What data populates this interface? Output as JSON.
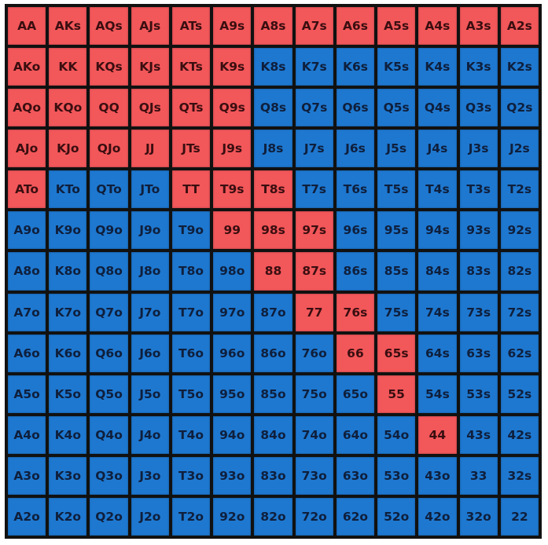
{
  "colors": {
    "raise": "#f2575a",
    "fold": "#1e78d0",
    "border": "#111111"
  },
  "grid": {
    "rows": [
      {
        "cells": [
          {
            "label": "AA",
            "action": "raise"
          },
          {
            "label": "AKs",
            "action": "raise"
          },
          {
            "label": "AQs",
            "action": "raise"
          },
          {
            "label": "AJs",
            "action": "raise"
          },
          {
            "label": "ATs",
            "action": "raise"
          },
          {
            "label": "A9s",
            "action": "raise"
          },
          {
            "label": "A8s",
            "action": "raise"
          },
          {
            "label": "A7s",
            "action": "raise"
          },
          {
            "label": "A6s",
            "action": "raise"
          },
          {
            "label": "A5s",
            "action": "raise"
          },
          {
            "label": "A4s",
            "action": "raise"
          },
          {
            "label": "A3s",
            "action": "raise"
          },
          {
            "label": "A2s",
            "action": "raise"
          }
        ]
      },
      {
        "cells": [
          {
            "label": "AKo",
            "action": "raise"
          },
          {
            "label": "KK",
            "action": "raise"
          },
          {
            "label": "KQs",
            "action": "raise"
          },
          {
            "label": "KJs",
            "action": "raise"
          },
          {
            "label": "KTs",
            "action": "raise"
          },
          {
            "label": "K9s",
            "action": "raise"
          },
          {
            "label": "K8s",
            "action": "fold"
          },
          {
            "label": "K7s",
            "action": "fold"
          },
          {
            "label": "K6s",
            "action": "fold"
          },
          {
            "label": "K5s",
            "action": "fold"
          },
          {
            "label": "K4s",
            "action": "fold"
          },
          {
            "label": "K3s",
            "action": "fold"
          },
          {
            "label": "K2s",
            "action": "fold"
          }
        ]
      },
      {
        "cells": [
          {
            "label": "AQo",
            "action": "raise"
          },
          {
            "label": "KQo",
            "action": "raise"
          },
          {
            "label": "QQ",
            "action": "raise"
          },
          {
            "label": "QJs",
            "action": "raise"
          },
          {
            "label": "QTs",
            "action": "raise"
          },
          {
            "label": "Q9s",
            "action": "raise"
          },
          {
            "label": "Q8s",
            "action": "fold"
          },
          {
            "label": "Q7s",
            "action": "fold"
          },
          {
            "label": "Q6s",
            "action": "fold"
          },
          {
            "label": "Q5s",
            "action": "fold"
          },
          {
            "label": "Q4s",
            "action": "fold"
          },
          {
            "label": "Q3s",
            "action": "fold"
          },
          {
            "label": "Q2s",
            "action": "fold"
          }
        ]
      },
      {
        "cells": [
          {
            "label": "AJo",
            "action": "raise"
          },
          {
            "label": "KJo",
            "action": "raise"
          },
          {
            "label": "QJo",
            "action": "raise"
          },
          {
            "label": "JJ",
            "action": "raise"
          },
          {
            "label": "JTs",
            "action": "raise"
          },
          {
            "label": "J9s",
            "action": "raise"
          },
          {
            "label": "J8s",
            "action": "fold"
          },
          {
            "label": "J7s",
            "action": "fold"
          },
          {
            "label": "J6s",
            "action": "fold"
          },
          {
            "label": "J5s",
            "action": "fold"
          },
          {
            "label": "J4s",
            "action": "fold"
          },
          {
            "label": "J3s",
            "action": "fold"
          },
          {
            "label": "J2s",
            "action": "fold"
          }
        ]
      },
      {
        "cells": [
          {
            "label": "ATo",
            "action": "raise"
          },
          {
            "label": "KTo",
            "action": "fold"
          },
          {
            "label": "QTo",
            "action": "fold"
          },
          {
            "label": "JTo",
            "action": "fold"
          },
          {
            "label": "TT",
            "action": "raise"
          },
          {
            "label": "T9s",
            "action": "raise"
          },
          {
            "label": "T8s",
            "action": "raise"
          },
          {
            "label": "T7s",
            "action": "fold"
          },
          {
            "label": "T6s",
            "action": "fold"
          },
          {
            "label": "T5s",
            "action": "fold"
          },
          {
            "label": "T4s",
            "action": "fold"
          },
          {
            "label": "T3s",
            "action": "fold"
          },
          {
            "label": "T2s",
            "action": "fold"
          }
        ]
      },
      {
        "cells": [
          {
            "label": "A9o",
            "action": "fold"
          },
          {
            "label": "K9o",
            "action": "fold"
          },
          {
            "label": "Q9o",
            "action": "fold"
          },
          {
            "label": "J9o",
            "action": "fold"
          },
          {
            "label": "T9o",
            "action": "fold"
          },
          {
            "label": "99",
            "action": "raise"
          },
          {
            "label": "98s",
            "action": "raise"
          },
          {
            "label": "97s",
            "action": "raise"
          },
          {
            "label": "96s",
            "action": "fold"
          },
          {
            "label": "95s",
            "action": "fold"
          },
          {
            "label": "94s",
            "action": "fold"
          },
          {
            "label": "93s",
            "action": "fold"
          },
          {
            "label": "92s",
            "action": "fold"
          }
        ]
      },
      {
        "cells": [
          {
            "label": "A8o",
            "action": "fold"
          },
          {
            "label": "K8o",
            "action": "fold"
          },
          {
            "label": "Q8o",
            "action": "fold"
          },
          {
            "label": "J8o",
            "action": "fold"
          },
          {
            "label": "T8o",
            "action": "fold"
          },
          {
            "label": "98o",
            "action": "fold"
          },
          {
            "label": "88",
            "action": "raise"
          },
          {
            "label": "87s",
            "action": "raise"
          },
          {
            "label": "86s",
            "action": "fold"
          },
          {
            "label": "85s",
            "action": "fold"
          },
          {
            "label": "84s",
            "action": "fold"
          },
          {
            "label": "83s",
            "action": "fold"
          },
          {
            "label": "82s",
            "action": "fold"
          }
        ]
      },
      {
        "cells": [
          {
            "label": "A7o",
            "action": "fold"
          },
          {
            "label": "K7o",
            "action": "fold"
          },
          {
            "label": "Q7o",
            "action": "fold"
          },
          {
            "label": "J7o",
            "action": "fold"
          },
          {
            "label": "T7o",
            "action": "fold"
          },
          {
            "label": "97o",
            "action": "fold"
          },
          {
            "label": "87o",
            "action": "fold"
          },
          {
            "label": "77",
            "action": "raise"
          },
          {
            "label": "76s",
            "action": "raise"
          },
          {
            "label": "75s",
            "action": "fold"
          },
          {
            "label": "74s",
            "action": "fold"
          },
          {
            "label": "73s",
            "action": "fold"
          },
          {
            "label": "72s",
            "action": "fold"
          }
        ]
      },
      {
        "cells": [
          {
            "label": "A6o",
            "action": "fold"
          },
          {
            "label": "K6o",
            "action": "fold"
          },
          {
            "label": "Q6o",
            "action": "fold"
          },
          {
            "label": "J6o",
            "action": "fold"
          },
          {
            "label": "T6o",
            "action": "fold"
          },
          {
            "label": "96o",
            "action": "fold"
          },
          {
            "label": "86o",
            "action": "fold"
          },
          {
            "label": "76o",
            "action": "fold"
          },
          {
            "label": "66",
            "action": "raise"
          },
          {
            "label": "65s",
            "action": "raise"
          },
          {
            "label": "64s",
            "action": "fold"
          },
          {
            "label": "63s",
            "action": "fold"
          },
          {
            "label": "62s",
            "action": "fold"
          }
        ]
      },
      {
        "cells": [
          {
            "label": "A5o",
            "action": "fold"
          },
          {
            "label": "K5o",
            "action": "fold"
          },
          {
            "label": "Q5o",
            "action": "fold"
          },
          {
            "label": "J5o",
            "action": "fold"
          },
          {
            "label": "T5o",
            "action": "fold"
          },
          {
            "label": "95o",
            "action": "fold"
          },
          {
            "label": "85o",
            "action": "fold"
          },
          {
            "label": "75o",
            "action": "fold"
          },
          {
            "label": "65o",
            "action": "fold"
          },
          {
            "label": "55",
            "action": "raise"
          },
          {
            "label": "54s",
            "action": "fold"
          },
          {
            "label": "53s",
            "action": "fold"
          },
          {
            "label": "52s",
            "action": "fold"
          }
        ]
      },
      {
        "cells": [
          {
            "label": "A4o",
            "action": "fold"
          },
          {
            "label": "K4o",
            "action": "fold"
          },
          {
            "label": "Q4o",
            "action": "fold"
          },
          {
            "label": "J4o",
            "action": "fold"
          },
          {
            "label": "T4o",
            "action": "fold"
          },
          {
            "label": "94o",
            "action": "fold"
          },
          {
            "label": "84o",
            "action": "fold"
          },
          {
            "label": "74o",
            "action": "fold"
          },
          {
            "label": "64o",
            "action": "fold"
          },
          {
            "label": "54o",
            "action": "fold"
          },
          {
            "label": "44",
            "action": "raise"
          },
          {
            "label": "43s",
            "action": "fold"
          },
          {
            "label": "42s",
            "action": "fold"
          }
        ]
      },
      {
        "cells": [
          {
            "label": "A3o",
            "action": "fold"
          },
          {
            "label": "K3o",
            "action": "fold"
          },
          {
            "label": "Q3o",
            "action": "fold"
          },
          {
            "label": "J3o",
            "action": "fold"
          },
          {
            "label": "T3o",
            "action": "fold"
          },
          {
            "label": "93o",
            "action": "fold"
          },
          {
            "label": "83o",
            "action": "fold"
          },
          {
            "label": "73o",
            "action": "fold"
          },
          {
            "label": "63o",
            "action": "fold"
          },
          {
            "label": "53o",
            "action": "fold"
          },
          {
            "label": "43o",
            "action": "fold"
          },
          {
            "label": "33",
            "action": "fold"
          },
          {
            "label": "32s",
            "action": "fold"
          }
        ]
      },
      {
        "cells": [
          {
            "label": "A2o",
            "action": "fold"
          },
          {
            "label": "K2o",
            "action": "fold"
          },
          {
            "label": "Q2o",
            "action": "fold"
          },
          {
            "label": "J2o",
            "action": "fold"
          },
          {
            "label": "T2o",
            "action": "fold"
          },
          {
            "label": "92o",
            "action": "fold"
          },
          {
            "label": "82o",
            "action": "fold"
          },
          {
            "label": "72o",
            "action": "fold"
          },
          {
            "label": "62o",
            "action": "fold"
          },
          {
            "label": "52o",
            "action": "fold"
          },
          {
            "label": "42o",
            "action": "fold"
          },
          {
            "label": "32o",
            "action": "fold"
          },
          {
            "label": "22",
            "action": "fold"
          }
        ]
      }
    ]
  }
}
